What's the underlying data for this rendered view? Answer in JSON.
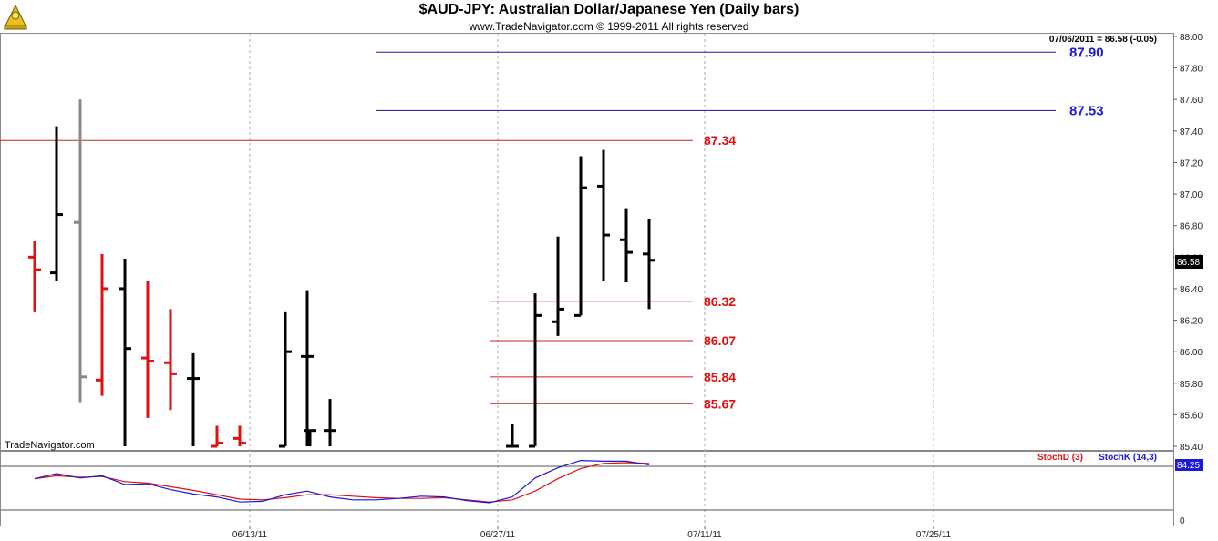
{
  "header": {
    "title": "$AUD-JPY:  Australian Dollar/Japanese Yen  (Daily bars)",
    "subtitle": "www.TradeNavigator.com © 1999-2011 All rights reserved",
    "info": "07/06/2011 = 86.58 (-0.05)",
    "watermark": "TradeNavigator.com"
  },
  "chart_data": [
    {
      "type": "ohlc",
      "ylim": [
        85.4,
        88.0
      ],
      "y_ticks": [
        "88.00",
        "87.80",
        "87.60",
        "87.40",
        "87.20",
        "87.00",
        "86.80",
        "86.60",
        "86.40",
        "86.20",
        "86.00",
        "85.80",
        "85.60",
        "85.40"
      ],
      "x_ticks": [
        "06/13/11",
        "06/27/11",
        "07/11/11",
        "07/25/11"
      ],
      "last_price": "86.58",
      "bars": [
        {
          "x": 38,
          "o": 86.6,
          "h": 86.7,
          "l": 86.25,
          "c": 86.52,
          "color": "#e01010"
        },
        {
          "x": 62,
          "o": 86.5,
          "h": 87.43,
          "l": 86.45,
          "c": 86.87,
          "color": "#000000"
        },
        {
          "x": 88,
          "o": 86.82,
          "h": 87.6,
          "l": 85.68,
          "c": 85.84,
          "color": "#888888"
        },
        {
          "x": 112,
          "o": 85.82,
          "h": 86.62,
          "l": 85.72,
          "c": 86.4,
          "color": "#e01010"
        },
        {
          "x": 137,
          "o": 86.4,
          "h": 86.59,
          "l": 85.4,
          "c": 86.02,
          "color": "#000000"
        },
        {
          "x": 162,
          "o": 85.96,
          "h": 86.45,
          "l": 85.58,
          "c": 85.94,
          "color": "#e01010"
        },
        {
          "x": 187,
          "o": 85.93,
          "h": 86.27,
          "l": 85.63,
          "c": 85.86,
          "color": "#e01010"
        },
        {
          "x": 212,
          "o": 85.83,
          "h": 85.99,
          "l": 85.4,
          "c": 85.83,
          "color": "#000000"
        },
        {
          "x": 238,
          "o": 85.4,
          "h": 85.53,
          "l": 85.4,
          "c": 85.42,
          "color": "#e01010"
        },
        {
          "x": 263,
          "o": 85.45,
          "h": 85.53,
          "l": 85.4,
          "c": 85.42,
          "color": "#e01010"
        },
        {
          "x": 313,
          "o": 85.4,
          "h": 86.25,
          "l": 85.4,
          "c": 86.0,
          "color": "#000000"
        },
        {
          "x": 337,
          "o": 85.97,
          "h": 86.39,
          "l": 85.4,
          "c": 85.97,
          "color": "#000000"
        },
        {
          "x": 340,
          "o": 85.5,
          "h": 85.5,
          "l": 85.4,
          "c": 85.5,
          "color": "#000000"
        },
        {
          "x": 362,
          "o": 85.5,
          "h": 85.7,
          "l": 85.4,
          "c": 85.5,
          "color": "#000000"
        },
        {
          "x": 562,
          "o": 85.4,
          "h": 85.54,
          "l": 85.4,
          "c": 85.4,
          "color": "#000000"
        },
        {
          "x": 587,
          "o": 85.4,
          "h": 86.37,
          "l": 85.4,
          "c": 86.23,
          "color": "#000000"
        },
        {
          "x": 612,
          "o": 86.19,
          "h": 86.73,
          "l": 86.1,
          "c": 86.27,
          "color": "#000000"
        },
        {
          "x": 637,
          "o": 86.23,
          "h": 87.24,
          "l": 86.23,
          "c": 87.04,
          "color": "#000000"
        },
        {
          "x": 662,
          "o": 87.05,
          "h": 87.28,
          "l": 86.45,
          "c": 86.74,
          "color": "#000000"
        },
        {
          "x": 687,
          "o": 86.71,
          "h": 86.91,
          "l": 86.44,
          "c": 86.63,
          "color": "#000000"
        },
        {
          "x": 712,
          "o": 86.62,
          "h": 86.84,
          "l": 86.27,
          "c": 86.58,
          "color": "#000000"
        }
      ],
      "levels": [
        {
          "value": 87.9,
          "label": "87.90",
          "color": "#1a1aa0",
          "text_color": "#1a1ad8",
          "x1": 412,
          "x2": 1158
        },
        {
          "value": 87.53,
          "label": "87.53",
          "color": "#1a1aa0",
          "text_color": "#1a1ad8",
          "x1": 412,
          "x2": 1158
        },
        {
          "value": 87.34,
          "label": "87.34",
          "color": "#cc2020",
          "text_color": "#e01010",
          "x1": 0,
          "x2": 760
        },
        {
          "value": 86.32,
          "label": "86.32",
          "color": "#cc2020",
          "text_color": "#e01010",
          "x1": 538,
          "x2": 760
        },
        {
          "value": 86.07,
          "label": "86.07",
          "color": "#cc2020",
          "text_color": "#e01010",
          "x1": 538,
          "x2": 760
        },
        {
          "value": 85.84,
          "label": "85.84",
          "color": "#cc2020",
          "text_color": "#e01010",
          "x1": 538,
          "x2": 760
        },
        {
          "value": 85.67,
          "label": "85.67",
          "color": "#cc2020",
          "text_color": "#e01010",
          "x1": 538,
          "x2": 760
        }
      ]
    },
    {
      "type": "line",
      "indicator_labels": {
        "d": "StochD (3)",
        "k": "StochK (14,3)"
      },
      "last_value": "84.25",
      "ylim": [
        0,
        100
      ],
      "y_ticks": [
        "0"
      ],
      "levels": [
        80,
        20
      ],
      "series": [
        {
          "name": "StochD (3)",
          "color": "#e01010",
          "points": [
            [
              38,
              63
            ],
            [
              62,
              67
            ],
            [
              88,
              65
            ],
            [
              112,
              66
            ],
            [
              137,
              59
            ],
            [
              162,
              57
            ],
            [
              187,
              52
            ],
            [
              212,
              47
            ],
            [
              238,
              41
            ],
            [
              263,
              35
            ],
            [
              288,
              34
            ],
            [
              313,
              37
            ],
            [
              337,
              41
            ],
            [
              362,
              41
            ],
            [
              387,
              39
            ],
            [
              412,
              37
            ],
            [
              437,
              36
            ],
            [
              462,
              36
            ],
            [
              487,
              37
            ],
            [
              512,
              34
            ],
            [
              537,
              31
            ],
            [
              562,
              34
            ],
            [
              587,
              46
            ],
            [
              612,
              63
            ],
            [
              637,
              77
            ],
            [
              662,
              84
            ],
            [
              687,
              85
            ],
            [
              712,
              84
            ]
          ]
        },
        {
          "name": "StochK (14,3)",
          "color": "#1a1ad8",
          "points": [
            [
              38,
              63
            ],
            [
              62,
              70
            ],
            [
              88,
              64
            ],
            [
              112,
              67
            ],
            [
              137,
              55
            ],
            [
              162,
              56
            ],
            [
              187,
              48
            ],
            [
              212,
              42
            ],
            [
              238,
              38
            ],
            [
              263,
              31
            ],
            [
              288,
              32
            ],
            [
              313,
              41
            ],
            [
              337,
              46
            ],
            [
              362,
              38
            ],
            [
              387,
              34
            ],
            [
              412,
              34
            ],
            [
              437,
              36
            ],
            [
              462,
              39
            ],
            [
              487,
              38
            ],
            [
              512,
              33
            ],
            [
              537,
              30
            ],
            [
              562,
              38
            ],
            [
              587,
              64
            ],
            [
              612,
              78
            ],
            [
              637,
              88
            ],
            [
              662,
              87
            ],
            [
              687,
              87
            ],
            [
              712,
              82
            ]
          ]
        }
      ]
    }
  ]
}
